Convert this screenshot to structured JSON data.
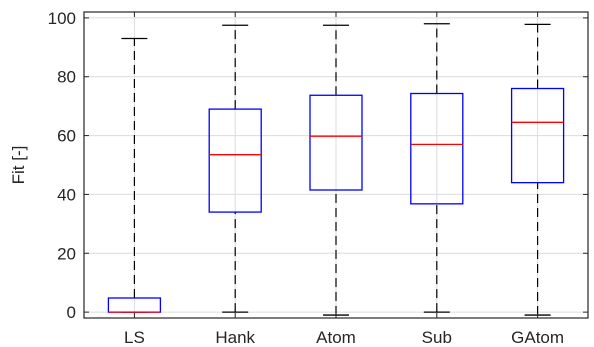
{
  "chart_data": {
    "type": "boxplot",
    "title": "",
    "xlabel": "",
    "ylabel": "Fit [-]",
    "ylim": [
      -2,
      102
    ],
    "yticks": [
      0,
      20,
      40,
      60,
      80,
      100
    ],
    "grid": true,
    "categories": [
      "LS",
      "Hank",
      "Atom",
      "Sub",
      "GAtom"
    ],
    "boxes": [
      {
        "category": "LS",
        "whisker_low": 0,
        "q1": 0,
        "median": 0,
        "q3": 4.8,
        "whisker_high": 93
      },
      {
        "category": "Hank",
        "whisker_low": 0,
        "q1": 34,
        "median": 53.5,
        "q3": 69,
        "whisker_high": 97.5
      },
      {
        "category": "Atom",
        "whisker_low": -1,
        "q1": 41.5,
        "median": 59.8,
        "q3": 73.7,
        "whisker_high": 97.5
      },
      {
        "category": "Sub",
        "whisker_low": 0,
        "q1": 36.8,
        "median": 57,
        "q3": 74.3,
        "whisker_high": 98
      },
      {
        "category": "GAtom",
        "whisker_low": -1,
        "q1": 44,
        "median": 64.5,
        "q3": 76,
        "whisker_high": 97.8
      }
    ],
    "colors": {
      "box": "#0000ff",
      "median": "#ff0000",
      "whisker": "#000000",
      "grid": "#dcdcdc",
      "axis": "#262626"
    }
  }
}
